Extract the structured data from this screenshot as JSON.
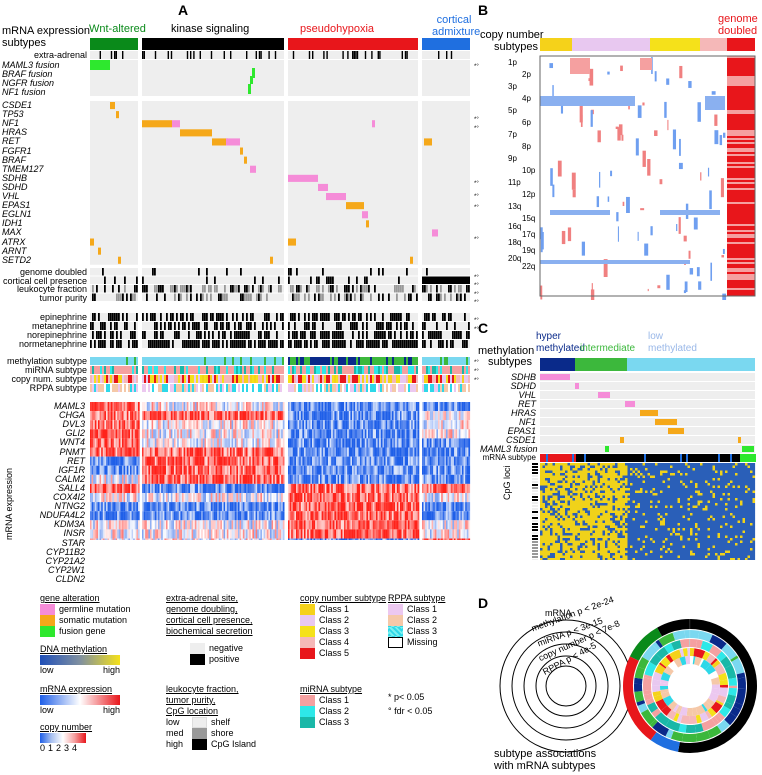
{
  "panels": {
    "a": "A",
    "b": "B",
    "c": "C",
    "d": "D"
  },
  "panelA": {
    "header_line1": "mRNA expression",
    "header_line2": "subtypes",
    "subtypes": [
      {
        "label": "Wnt-altered",
        "color": "#0a8a1a"
      },
      {
        "label": "kinase signaling",
        "color": "#000000"
      },
      {
        "label": "pseudohypoxia",
        "color": "#e8161b"
      },
      {
        "label": "cortical admixture",
        "color": "#1f6fe0"
      }
    ],
    "extra_adrenal": "extra-adrenal",
    "fusion_rows": [
      "MAML3 fusion",
      "BRAF fusion",
      "NGFR fusion",
      "NF1 fusion"
    ],
    "gene_rows": [
      "CSDE1",
      "TP53",
      "NF1",
      "HRAS",
      "RET",
      "FGFR1",
      "BRAF",
      "TMEM127",
      "SDHB",
      "SDHD",
      "VHL",
      "EPAS1",
      "EGLN1",
      "IDH1",
      "MAX",
      "ATRX",
      "ARNT",
      "SETD2"
    ],
    "feature_rows": [
      "genome doubled",
      "cortical cell presence",
      "leukocyte fraction",
      "tumor purity"
    ],
    "secretion_rows": [
      "epinephrine",
      "metanephrine",
      "norepinephrine",
      "normetanephrine"
    ],
    "subtype_rows": [
      "methylation subtype",
      "miRNA subtype",
      "copy num. subtype",
      "RPPA subtype"
    ],
    "mrna_genes": [
      "MAML3",
      "CHGA",
      "DVL3",
      "GLI2",
      "WNT4",
      "PNMT",
      "RET",
      "IGF1R",
      "CALM2",
      "SALL4",
      "COX4I2",
      "NTNG2",
      "NDUFA4L2",
      "KDM3A",
      "INSR",
      "STAR",
      "CYP11B2",
      "CYP21A2",
      "CYP2W1",
      "CLDN2"
    ],
    "mrna_axis_label": "mRNA expression"
  },
  "legend": {
    "gene_alteration": {
      "title": "gene alteration",
      "items": [
        {
          "label": "germline mutation",
          "color": "#f58cd8"
        },
        {
          "label": "somatic mutation",
          "color": "#f5a81a"
        },
        {
          "label": "fusion gene",
          "color": "#2ee82e"
        }
      ]
    },
    "dna_methylation": {
      "title": "DNA methylation",
      "low": "low",
      "high": "high"
    },
    "mrna_expression": {
      "title": "mRNA expression",
      "low": "low",
      "high": "high"
    },
    "copy_number": {
      "title": "copy number",
      "ticks": "01234"
    },
    "binary": {
      "title_lines": [
        "extra-adrenal site,",
        "genome doubling,",
        "cortical cell presence,",
        "biochemical secretion"
      ],
      "negative": "negative",
      "positive": "positive"
    },
    "leukocyte": {
      "title_lines": [
        "leukocyte fraction,",
        "tumor purity,",
        "CpG location"
      ],
      "levels": [
        "low",
        "med",
        "high"
      ],
      "locations": [
        "shelf",
        "shore",
        "CpG Island"
      ]
    },
    "copy_number_subtype": {
      "title": "copy number subtype",
      "items": [
        {
          "label": "Class 1",
          "color": "#f5d21a"
        },
        {
          "label": "Class 2",
          "color": "#e8c8f0"
        },
        {
          "label": "Class 3",
          "color": "#f5e11a"
        },
        {
          "label": "Class 4",
          "color": "#f5b8b8"
        },
        {
          "label": "Class 5",
          "color": "#e8161b"
        }
      ]
    },
    "rppa_subtype": {
      "title": "RPPA subtype",
      "items": [
        {
          "label": "Class 1",
          "color": "#ecc8f0"
        },
        {
          "label": "Class 2",
          "color": "#f5c8a8"
        },
        {
          "label": "Class 3",
          "color": "#2ed8e8"
        },
        {
          "label": "Missing",
          "color": "#ffffff"
        }
      ]
    },
    "mirna_subtype": {
      "title": "miRNA subtype",
      "items": [
        {
          "label": "Class 1",
          "color": "#f5a0a0"
        },
        {
          "label": "Class 2",
          "color": "#2ee8e8"
        },
        {
          "label": "Class 3",
          "color": "#1ab8a8"
        }
      ]
    },
    "sig": [
      "* p< 0.05",
      "° fdr < 0.05"
    ]
  },
  "panelB": {
    "header_line1": "copy number",
    "header_line2": "subtypes",
    "genome_doubled_line1": "genome",
    "genome_doubled_line2": "doubled",
    "chrom_labels": [
      "1p",
      "2p",
      "3p",
      "4p",
      "5p",
      "6p",
      "7p",
      "8p",
      "9p",
      "10p",
      "11p",
      "12p",
      "13q",
      "15q",
      "16q",
      "17q",
      "18q",
      "19q",
      "20q",
      "22q"
    ]
  },
  "panelC": {
    "header_line1": "methylation",
    "header_line2": "subtypes",
    "hyper_line1": "hyper",
    "hyper_line2": "methylated",
    "intermediate": "intermediate",
    "low_line1": "low",
    "low_line2": "methylated",
    "rows": [
      "SDHB",
      "SDHD",
      "VHL",
      "RET",
      "HRAS",
      "NF1",
      "EPAS1",
      "CSDE1",
      "MAML3 fusion",
      "mRNA subtype"
    ],
    "cpg_label": "CpG loci"
  },
  "panelD": {
    "rings": [
      "mRNA",
      "methylation p < 2e-24",
      "miRNA p < 3e-15",
      "copy number p < 7e-8",
      "RPPA p < 4e-5"
    ],
    "caption_line1": "subtype associations",
    "caption_line2": "with mRNA subtypes"
  }
}
